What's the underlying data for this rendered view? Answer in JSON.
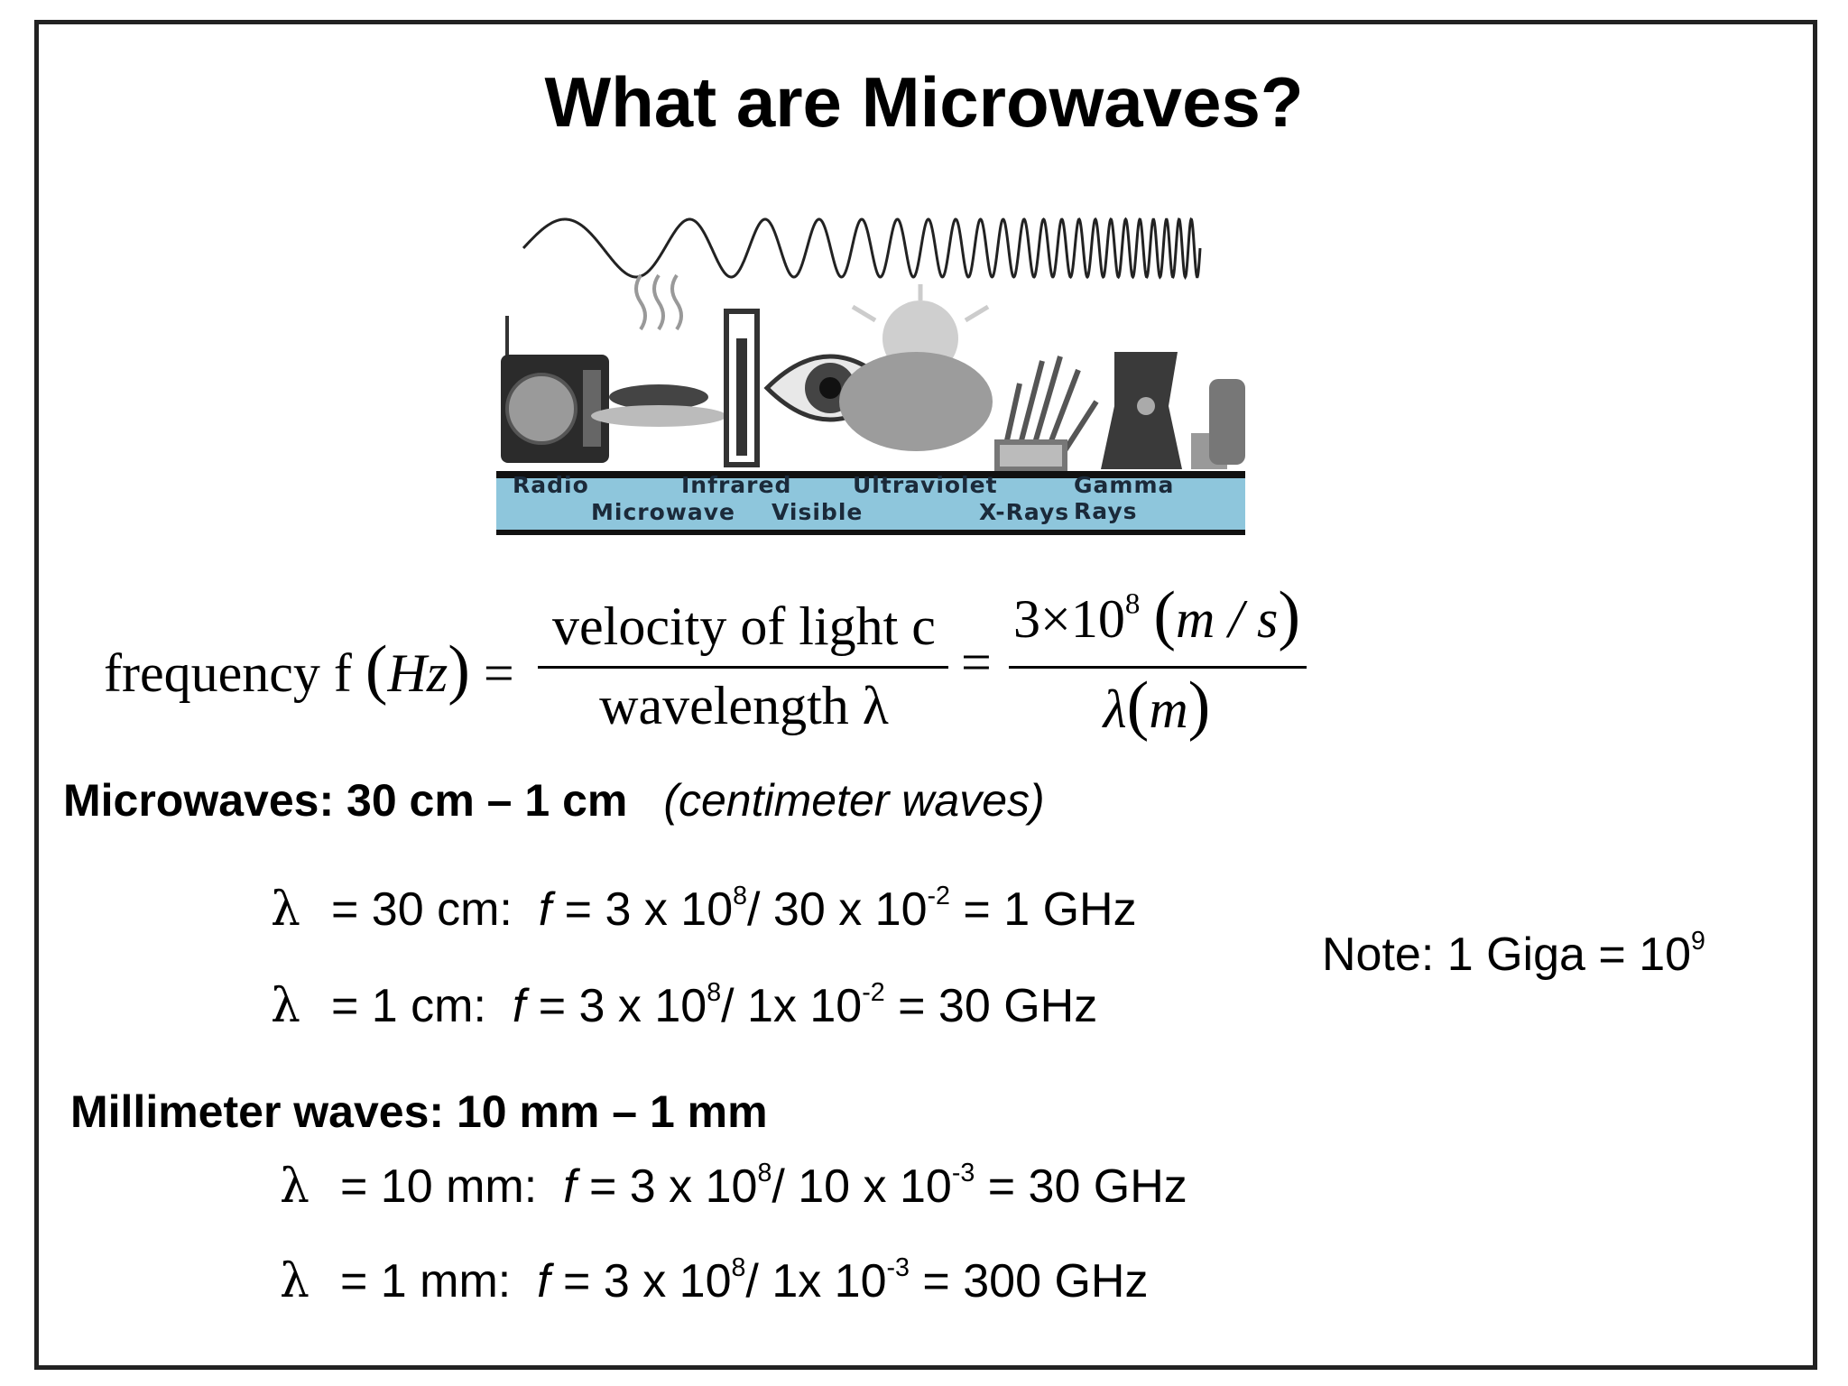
{
  "title": "What are Microwaves?",
  "spectrum": {
    "bands_top": [
      "Radio",
      "Infrared",
      "Ultraviolet",
      "Gamma Rays"
    ],
    "bands_bottom": [
      "Microwave",
      "Visible",
      "X-Rays"
    ],
    "band_color": "#8ec6dc"
  },
  "formula": {
    "lhs": "frequency f",
    "lhs_unit": "Hz",
    "frac1_num": "velocity of light c",
    "frac1_den": "wavelength λ",
    "frac2_num": "3×10",
    "frac2_num_exp": "8",
    "frac2_num_unit": "m / s",
    "frac2_den": "λ",
    "frac2_den_unit": "m",
    "equals": "="
  },
  "microwaves": {
    "heading": "Microwaves: 30 cm – 1 cm",
    "subtitle": "(centimeter waves)",
    "rows": [
      {
        "lambda": "λ",
        "pre": "= 30 cm:",
        "f": "f",
        "mid": "= 3 x 10",
        "exp1": "8",
        "mid2": "/ 30 x 10",
        "exp2": "-2",
        "post": "= 1 GHz"
      },
      {
        "lambda": "λ",
        "pre": "= 1 cm:",
        "f": "f",
        "mid": "= 3 x 10",
        "exp1": "8",
        "mid2": "/ 1x 10",
        "exp2": "-2",
        "post": "= 30 GHz"
      }
    ]
  },
  "note": {
    "text": "Note: 1 Giga = 10",
    "exp": "9"
  },
  "millimeter": {
    "heading": "Millimeter waves: 10 mm – 1 mm",
    "rows": [
      {
        "lambda": "λ",
        "pre": "= 10 mm:",
        "f": "f",
        "mid": "= 3 x 10",
        "exp1": "8",
        "mid2": "/ 10 x 10",
        "exp2": "-3",
        "post": "= 30 GHz"
      },
      {
        "lambda": "λ",
        "pre": "= 1 mm:",
        "f": "f",
        "mid": "= 3 x 10",
        "exp1": "8",
        "mid2": "/ 1x 10",
        "exp2": "-3",
        "post": "= 300 GHz"
      }
    ]
  }
}
